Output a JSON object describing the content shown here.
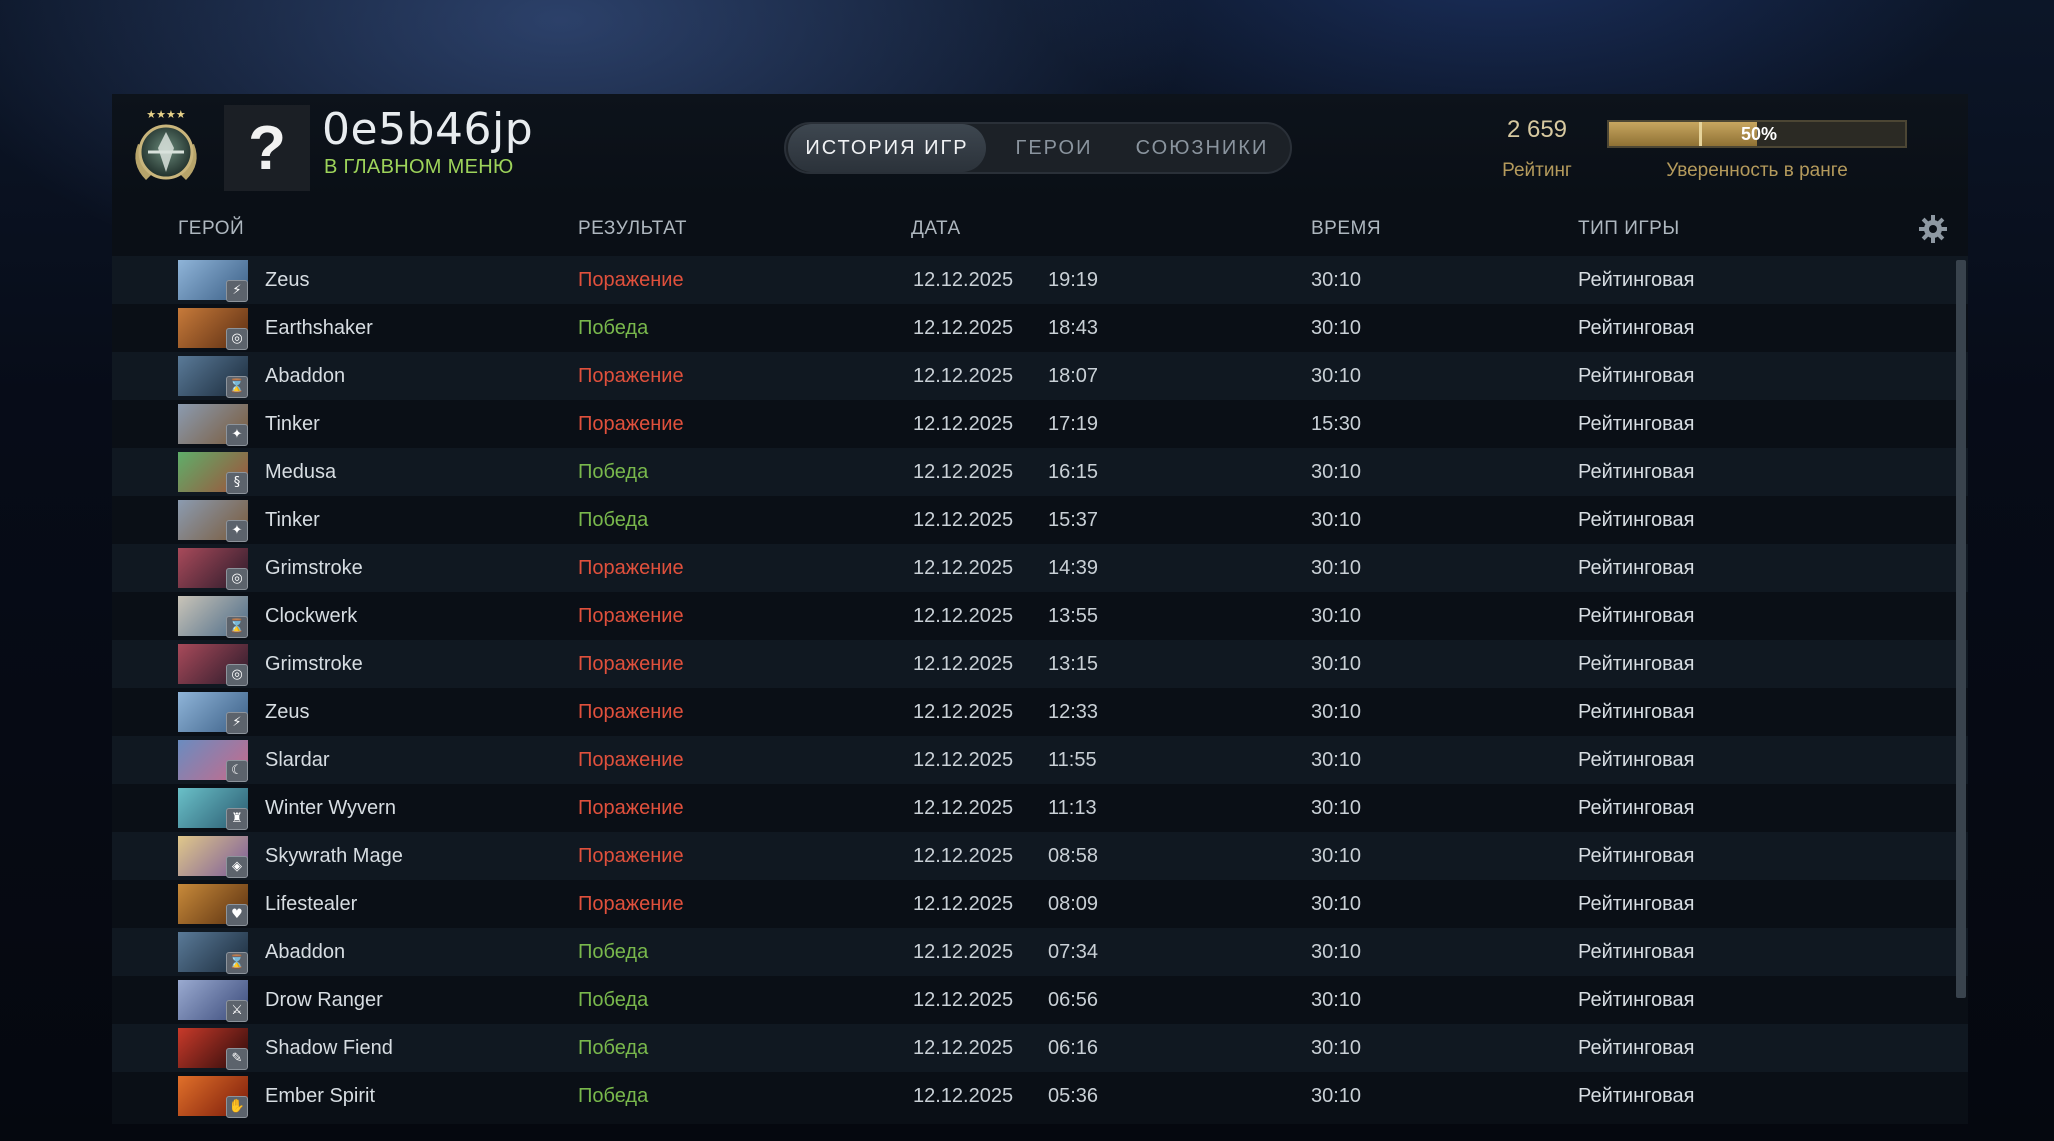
{
  "player": {
    "name": "0e5b46jp",
    "status": "В ГЛАВНОМ МЕНЮ",
    "avatar_symbol": "?"
  },
  "tabs": [
    {
      "label": "ИСТОРИЯ ИГР",
      "active": true
    },
    {
      "label": "ГЕРОИ",
      "active": false
    },
    {
      "label": "СОЮЗНИКИ",
      "active": false
    }
  ],
  "rating": {
    "value": "2 659",
    "label": "Рейтинг"
  },
  "confidence": {
    "percent": 50,
    "text": "50%",
    "label": "Уверенность в ранге"
  },
  "columns": {
    "hero": "ГЕРОЙ",
    "result": "РЕЗУЛЬТАТ",
    "date": "ДАТА",
    "duration": "ВРЕМЯ",
    "game_type": "ТИП ИГРЫ"
  },
  "colors": {
    "loss": "#e0503c",
    "win": "#79b84c",
    "status_online": "#9dd35a",
    "gold": "#b49a5c"
  },
  "matches": [
    {
      "hero": "Zeus",
      "result": "Поражение",
      "win": false,
      "date": "12.12.2025",
      "time": "19:19",
      "duration": "30:10",
      "type": "Рейтинговая",
      "portrait": [
        "#8fb4d8",
        "#3b5f86"
      ],
      "badge": "⚡"
    },
    {
      "hero": "Earthshaker",
      "result": "Победа",
      "win": true,
      "date": "12.12.2025",
      "time": "18:43",
      "duration": "30:10",
      "type": "Рейтинговая",
      "portrait": [
        "#c77a3a",
        "#5a2d12"
      ],
      "badge": "◎"
    },
    {
      "hero": "Abaddon",
      "result": "Поражение",
      "win": false,
      "date": "12.12.2025",
      "time": "18:07",
      "duration": "30:10",
      "type": "Рейтинговая",
      "portrait": [
        "#5a7a98",
        "#1a2a3a"
      ],
      "badge": "⌛"
    },
    {
      "hero": "Tinker",
      "result": "Поражение",
      "win": false,
      "date": "12.12.2025",
      "time": "17:19",
      "duration": "15:30",
      "type": "Рейтинговая",
      "portrait": [
        "#8b9bb0",
        "#7a5a3a"
      ],
      "badge": "✦"
    },
    {
      "hero": "Medusa",
      "result": "Победа",
      "win": true,
      "date": "12.12.2025",
      "time": "16:15",
      "duration": "30:10",
      "type": "Рейтинговая",
      "portrait": [
        "#5fae6a",
        "#a0503a"
      ],
      "badge": "§"
    },
    {
      "hero": "Tinker",
      "result": "Победа",
      "win": true,
      "date": "12.12.2025",
      "time": "15:37",
      "duration": "30:10",
      "type": "Рейтинговая",
      "portrait": [
        "#8b9bb0",
        "#7a5a3a"
      ],
      "badge": "✦"
    },
    {
      "hero": "Grimstroke",
      "result": "Поражение",
      "win": false,
      "date": "12.12.2025",
      "time": "14:39",
      "duration": "30:10",
      "type": "Рейтинговая",
      "portrait": [
        "#a84a5a",
        "#2a1a2a"
      ],
      "badge": "◎"
    },
    {
      "hero": "Clockwerk",
      "result": "Поражение",
      "win": false,
      "date": "12.12.2025",
      "time": "13:55",
      "duration": "30:10",
      "type": "Рейтинговая",
      "portrait": [
        "#c9c4b8",
        "#4a6a88"
      ],
      "badge": "⌛"
    },
    {
      "hero": "Grimstroke",
      "result": "Поражение",
      "win": false,
      "date": "12.12.2025",
      "time": "13:15",
      "duration": "30:10",
      "type": "Рейтинговая",
      "portrait": [
        "#a84a5a",
        "#2a1a2a"
      ],
      "badge": "◎"
    },
    {
      "hero": "Zeus",
      "result": "Поражение",
      "win": false,
      "date": "12.12.2025",
      "time": "12:33",
      "duration": "30:10",
      "type": "Рейтинговая",
      "portrait": [
        "#8fb4d8",
        "#3b5f86"
      ],
      "badge": "⚡"
    },
    {
      "hero": "Slardar",
      "result": "Поражение",
      "win": false,
      "date": "12.12.2025",
      "time": "11:55",
      "duration": "30:10",
      "type": "Рейтинговая",
      "portrait": [
        "#6a8cc0",
        "#c86a8a"
      ],
      "badge": "☾"
    },
    {
      "hero": "Winter Wyvern",
      "result": "Поражение",
      "win": false,
      "date": "12.12.2025",
      "time": "11:13",
      "duration": "30:10",
      "type": "Рейтинговая",
      "portrait": [
        "#6ac0c8",
        "#2a5a70"
      ],
      "badge": "♜"
    },
    {
      "hero": "Skywrath Mage",
      "result": "Поражение",
      "win": false,
      "date": "12.12.2025",
      "time": "08:58",
      "duration": "30:10",
      "type": "Рейтинговая",
      "portrait": [
        "#e0c88a",
        "#7a5a9a"
      ],
      "badge": "◈"
    },
    {
      "hero": "Lifestealer",
      "result": "Поражение",
      "win": false,
      "date": "12.12.2025",
      "time": "08:09",
      "duration": "30:10",
      "type": "Рейтинговая",
      "portrait": [
        "#c88a3a",
        "#5a3010"
      ],
      "badge": "♥"
    },
    {
      "hero": "Abaddon",
      "result": "Победа",
      "win": true,
      "date": "12.12.2025",
      "time": "07:34",
      "duration": "30:10",
      "type": "Рейтинговая",
      "portrait": [
        "#5a7a98",
        "#1a2a3a"
      ],
      "badge": "⌛"
    },
    {
      "hero": "Drow Ranger",
      "result": "Победа",
      "win": true,
      "date": "12.12.2025",
      "time": "06:56",
      "duration": "30:10",
      "type": "Рейтинговая",
      "portrait": [
        "#9aaad0",
        "#3a4a7a"
      ],
      "badge": "⚔"
    },
    {
      "hero": "Shadow Fiend",
      "result": "Победа",
      "win": true,
      "date": "12.12.2025",
      "time": "06:16",
      "duration": "30:10",
      "type": "Рейтинговая",
      "portrait": [
        "#c83a2a",
        "#2a0a0a"
      ],
      "badge": "✎"
    },
    {
      "hero": "Ember Spirit",
      "result": "Победа",
      "win": true,
      "date": "12.12.2025",
      "time": "05:36",
      "duration": "30:10",
      "type": "Рейтинговая",
      "portrait": [
        "#e0702a",
        "#7a1a0a"
      ],
      "badge": "✋"
    }
  ]
}
